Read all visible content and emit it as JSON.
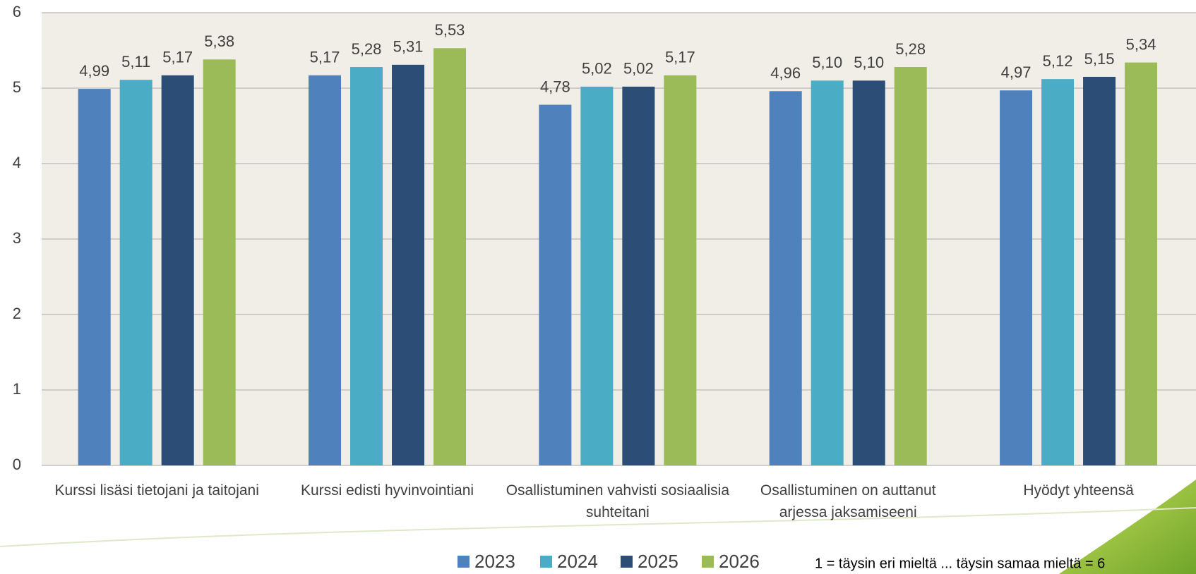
{
  "chart_data": {
    "type": "bar",
    "categories": [
      "Kurssi lisäsi tietojani ja taitojani",
      "Kurssi edisti hyvinvointiani",
      "Osallistuminen vahvisti sosiaalisia suhteitani",
      "Osallistuminen on auttanut arjessa jaksamiseeni",
      "Hyödyt yhteensä"
    ],
    "series": [
      {
        "name": "2023",
        "color": "#4f81bd",
        "values": [
          4.99,
          5.17,
          4.78,
          4.96,
          4.97
        ],
        "value_labels": [
          "4,99",
          "5,17",
          "4,78",
          "4,96",
          "4,97"
        ]
      },
      {
        "name": "2024",
        "color": "#4bacc6",
        "values": [
          5.11,
          5.28,
          5.02,
          5.1,
          5.12
        ],
        "value_labels": [
          "5,11",
          "5,28",
          "5,02",
          "5,10",
          "5,12"
        ]
      },
      {
        "name": "2025",
        "color": "#2c4d75",
        "values": [
          5.17,
          5.31,
          5.02,
          5.1,
          5.15
        ],
        "value_labels": [
          "5,17",
          "5,31",
          "5,02",
          "5,10",
          "5,15"
        ]
      },
      {
        "name": "2026",
        "color": "#9bbb59",
        "values": [
          5.38,
          5.53,
          5.17,
          5.28,
          5.34
        ],
        "value_labels": [
          "5,38",
          "5,53",
          "5,17",
          "5,28",
          "5,34"
        ]
      }
    ],
    "ylim": [
      0,
      6
    ],
    "yticks": [
      0,
      1,
      2,
      3,
      4,
      5,
      6
    ],
    "grid": true,
    "annotation": "1 = täysin eri mieltä ... täysin samaa mieltä = 6"
  }
}
